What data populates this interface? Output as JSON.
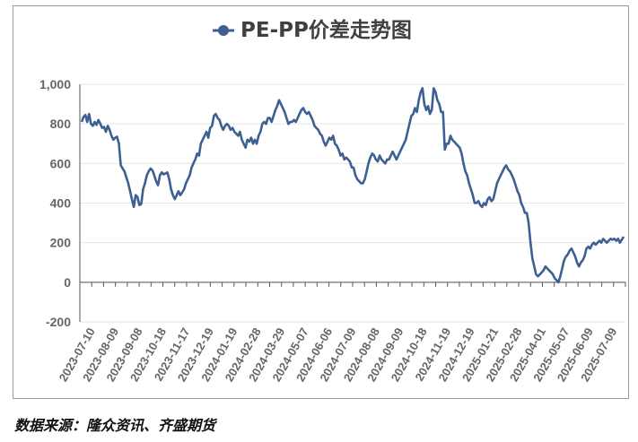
{
  "source_note": "数据来源：隆众资讯、齐盛期货",
  "chart_data": {
    "type": "line",
    "title": "PE-PP价差走势图",
    "xlabel": "",
    "ylabel": "",
    "ylim": [
      -200,
      1000
    ],
    "y_ticks": [
      -200,
      0,
      200,
      400,
      600,
      800,
      1000
    ],
    "y_tick_labels": [
      "-200",
      "0",
      "200",
      "400",
      "600",
      "800",
      "1,000"
    ],
    "x_tick_labels": [
      "2023-07-10",
      "2023-08-09",
      "2023-09-08",
      "2023-10-18",
      "2023-11-17",
      "2023-12-19",
      "2024-01-19",
      "2024-02-28",
      "2024-03-29",
      "2024-05-07",
      "2024-06-06",
      "2024-07-09",
      "2024-08-08",
      "2024-09-09",
      "2024-10-18",
      "2024-11-19",
      "2024-12-19",
      "2025-01-21",
      "2025-02-28",
      "2025-04-01",
      "2025-05-07",
      "2025-06-09",
      "2025-07-09"
    ],
    "grid": true,
    "legend": "top",
    "colors": {
      "series": "#3d5f93",
      "grid": "#e6e6e6",
      "axis": "#555555",
      "tick_text": "#666666"
    },
    "series": [
      {
        "name": "PE-PP",
        "values": [
          810,
          835,
          845,
          810,
          850,
          800,
          790,
          810,
          795,
          820,
          800,
          780,
          785,
          760,
          790,
          770,
          740,
          720,
          730,
          735,
          700,
          590,
          575,
          560,
          530,
          500,
          460,
          420,
          380,
          440,
          430,
          390,
          395,
          470,
          500,
          540,
          560,
          575,
          565,
          540,
          510,
          490,
          540,
          555,
          545,
          550,
          555,
          520,
          470,
          440,
          420,
          440,
          460,
          440,
          455,
          470,
          500,
          520,
          540,
          580,
          600,
          620,
          650,
          640,
          700,
          720,
          740,
          760,
          730,
          780,
          790,
          840,
          850,
          830,
          820,
          790,
          770,
          790,
          800,
          790,
          770,
          780,
          760,
          750,
          740,
          760,
          720,
          700,
          680,
          720,
          710,
          730,
          700,
          720,
          700,
          740,
          760,
          800,
          810,
          800,
          830,
          830,
          810,
          840,
          870,
          890,
          920,
          900,
          880,
          860,
          830,
          800,
          810,
          810,
          820,
          810,
          830,
          850,
          870,
          880,
          860,
          850,
          860,
          840,
          820,
          790,
          780,
          770,
          750,
          740,
          710,
          690,
          710,
          730,
          720,
          740,
          700,
          690,
          670,
          640,
          650,
          620,
          630,
          620,
          610,
          580,
          580,
          540,
          520,
          510,
          500,
          500,
          520,
          560,
          600,
          630,
          650,
          640,
          620,
          610,
          640,
          620,
          610,
          600,
          620,
          620,
          640,
          660,
          640,
          620,
          640,
          660,
          680,
          700,
          720,
          760,
          800,
          840,
          850,
          880,
          860,
          920,
          960,
          980,
          900,
          870,
          890,
          850,
          870,
          980,
          960,
          920,
          900,
          860,
          860,
          670,
          700,
          700,
          740,
          720,
          710,
          700,
          690,
          680,
          650,
          600,
          560,
          540,
          500,
          470,
          440,
          400,
          400,
          410,
          390,
          380,
          400,
          390,
          420,
          430,
          410,
          420,
          460,
          500,
          520,
          540,
          560,
          580,
          590,
          570,
          560,
          540,
          520,
          490,
          460,
          440,
          400,
          380,
          350,
          350,
          300,
          200,
          120,
          80,
          40,
          30,
          40,
          50,
          60,
          80,
          70,
          60,
          50,
          40,
          20,
          10,
          0,
          30,
          70,
          110,
          130,
          140,
          160,
          170,
          150,
          130,
          100,
          80,
          100,
          110,
          130,
          170,
          180,
          170,
          190,
          200,
          190,
          200,
          210,
          200,
          220,
          210,
          200,
          210,
          220,
          215,
          220,
          210,
          220,
          200,
          215,
          230
        ]
      }
    ]
  }
}
